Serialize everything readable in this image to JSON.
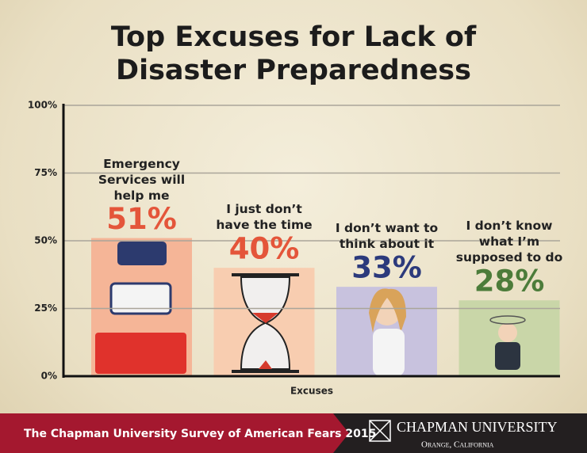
{
  "chart_data": {
    "type": "bar",
    "title": "Top Excuses for Lack of Disaster Preparedness",
    "x_label": "Excuses",
    "categories": [
      "Emergency Services will help me",
      "I just don’t have the time",
      "I don’t want to think about it",
      "I don’t know what I’m supposed to do"
    ],
    "values": [
      51,
      40,
      33,
      28
    ],
    "value_labels": [
      "51%",
      "40%",
      "33%",
      "28%"
    ],
    "colors": [
      "#f5b597",
      "#f8cdb0",
      "#c8c2de",
      "#c9d6a8"
    ],
    "label_colors": [
      "#e4553a",
      "#e4553a",
      "#2c3a7c",
      "#4c7c3a"
    ],
    "ylim": [
      0,
      100
    ],
    "yticks": [
      {
        "value": 0,
        "label": "0%"
      },
      {
        "value": 25,
        "label": "25%"
      },
      {
        "value": 50,
        "label": "50%"
      },
      {
        "value": 75,
        "label": "75%"
      },
      {
        "value": 100,
        "label": "100%"
      }
    ],
    "grid": true
  },
  "footer": {
    "survey": "The Chapman University Survey of American Fears 2015",
    "university": "CHAPMAN UNIVERSITY",
    "location": "Orange, California"
  }
}
